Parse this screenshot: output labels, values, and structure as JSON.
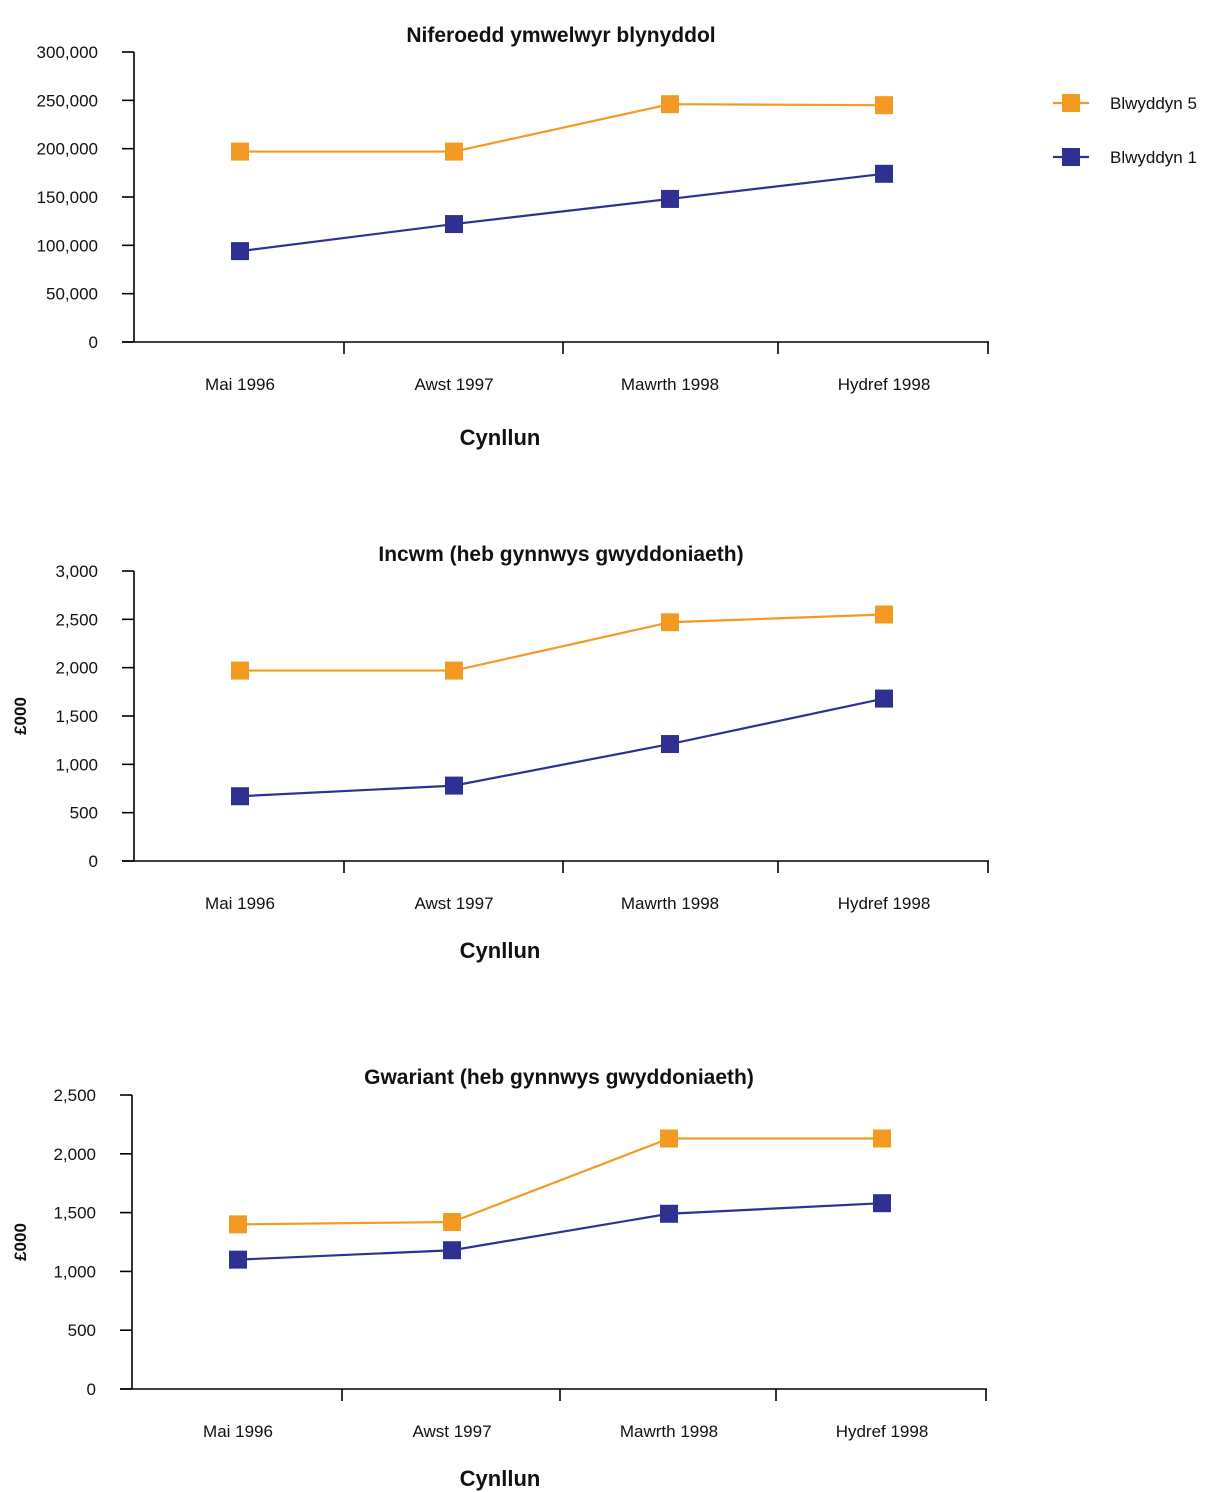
{
  "legend": {
    "position": "right",
    "items": [
      {
        "label": "Blwyddyn 5",
        "color": "#F39A22"
      },
      {
        "label": "Blwyddyn 1",
        "color": "#2E3192"
      }
    ]
  },
  "chart_data": [
    {
      "type": "line",
      "title": "Niferoedd ymwelwyr blynyddol",
      "xlabel": "Cynllun",
      "ylabel": "",
      "categories": [
        "Mai 1996",
        "Awst 1997",
        "Mawrth 1998",
        "Hydref 1998"
      ],
      "ylim": [
        0,
        300000
      ],
      "yticks": [
        0,
        50000,
        100000,
        150000,
        200000,
        250000,
        300000
      ],
      "ytick_labels": [
        "0",
        "50,000",
        "100,000",
        "150,000",
        "200,000",
        "250,000",
        "300,000"
      ],
      "grid": false,
      "series": [
        {
          "name": "Blwyddyn 5",
          "color": "#F39A22",
          "values": [
            197000,
            197000,
            246000,
            245000
          ]
        },
        {
          "name": "Blwyddyn 1",
          "color": "#2E3192",
          "values": [
            94000,
            122000,
            148000,
            174000
          ]
        }
      ]
    },
    {
      "type": "line",
      "title": "Incwm (heb gynnwys gwyddoniaeth)",
      "xlabel": "Cynllun",
      "ylabel": "£000",
      "categories": [
        "Mai 1996",
        "Awst 1997",
        "Mawrth 1998",
        "Hydref 1998"
      ],
      "ylim": [
        0,
        3000
      ],
      "yticks": [
        0,
        500,
        1000,
        1500,
        2000,
        2500,
        3000
      ],
      "ytick_labels": [
        "0",
        "500",
        "1,000",
        "1,500",
        "2,000",
        "2,500",
        "3,000"
      ],
      "grid": false,
      "series": [
        {
          "name": "Blwyddyn 5",
          "color": "#F39A22",
          "values": [
            1970,
            1970,
            2470,
            2550
          ]
        },
        {
          "name": "Blwyddyn 1",
          "color": "#2E3192",
          "values": [
            670,
            780,
            1210,
            1680
          ]
        }
      ]
    },
    {
      "type": "line",
      "title": "Gwariant (heb gynnwys gwyddoniaeth)",
      "xlabel": "Cynllun",
      "ylabel": "£000",
      "categories": [
        "Mai 1996",
        "Awst 1997",
        "Mawrth 1998",
        "Hydref 1998"
      ],
      "ylim": [
        0,
        2500
      ],
      "yticks": [
        0,
        500,
        1000,
        1500,
        2000,
        2500
      ],
      "ytick_labels": [
        "0",
        "500",
        "1,000",
        "1,500",
        "2,000",
        "2,500"
      ],
      "grid": false,
      "series": [
        {
          "name": "Blwyddyn 5",
          "color": "#F39A22",
          "values": [
            1400,
            1420,
            2130,
            2130
          ]
        },
        {
          "name": "Blwyddyn 1",
          "color": "#2E3192",
          "values": [
            1100,
            1180,
            1490,
            1580
          ]
        }
      ]
    }
  ]
}
